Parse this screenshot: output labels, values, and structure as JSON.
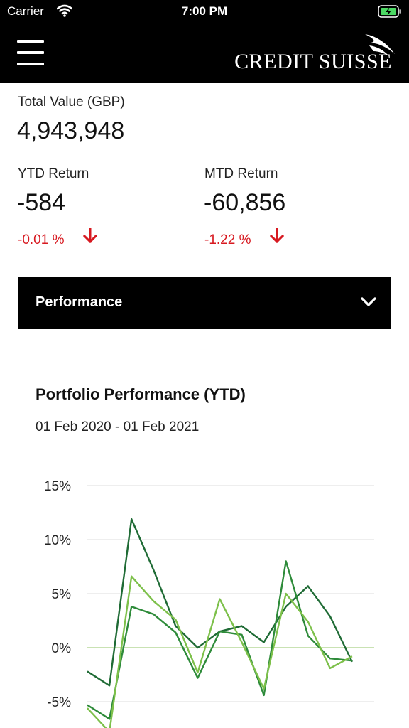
{
  "status_bar": {
    "carrier": "Carrier",
    "time": "7:00 PM",
    "wifi_icon": "wifi-icon",
    "battery_icon": "battery-charging-icon"
  },
  "header": {
    "menu_icon": "hamburger-menu-icon",
    "logo_text": "CREDIT SUISSE",
    "logo_icon": "sails-logo-icon",
    "background": "#000000"
  },
  "summary": {
    "total_value_label": "Total Value (GBP)",
    "total_value": "4,943,948",
    "ytd": {
      "label": "YTD Return",
      "value": "-584",
      "percent": "-0.01 %",
      "direction_icon": "down-arrow-icon"
    },
    "mtd": {
      "label": "MTD Return",
      "value": "-60,856",
      "percent": "-1.22 %",
      "direction_icon": "down-arrow-icon"
    },
    "negative_color": "#d71920"
  },
  "performance_section": {
    "label": "Performance",
    "toggle_icon": "chevron-down-icon"
  },
  "chart_section": {
    "title": "Portfolio Performance (YTD)",
    "date_range": "01 Feb 2020 - 01 Feb 2021"
  },
  "chart_data": {
    "type": "line",
    "title": "Portfolio Performance (YTD)",
    "subtitle": "01 Feb 2020 - 01 Feb 2021",
    "x": [
      0,
      1,
      2,
      3,
      4,
      5,
      6,
      7,
      8,
      9,
      10,
      11,
      12,
      13
    ],
    "ylim": [
      -5,
      15
    ],
    "y_ticks": [
      "15%",
      "10%",
      "5%",
      "0%",
      "-5%"
    ],
    "y_tick_values": [
      15,
      10,
      5,
      0,
      -5
    ],
    "grid": true,
    "zero_line_color": "#c9e2b3",
    "series": [
      {
        "color": "#1f6b35",
        "values": [
          -2.2,
          -3.5,
          11.9,
          7.2,
          2.0,
          0.0,
          1.5,
          2.0,
          0.5,
          3.8,
          5.7,
          2.9,
          -1.3,
          null
        ]
      },
      {
        "color": "#2e8b3a",
        "values": [
          -5.3,
          -6.6,
          3.8,
          3.1,
          1.4,
          -2.8,
          1.5,
          1.2,
          -4.4,
          8.0,
          1.1,
          -1.0,
          -1.2,
          null
        ]
      },
      {
        "color": "#7dc04a",
        "values": [
          -5.6,
          -7.8,
          6.6,
          4.3,
          2.6,
          -2.3,
          4.5,
          0.5,
          -3.8,
          5.0,
          2.4,
          -1.9,
          -0.8,
          null
        ]
      }
    ]
  }
}
